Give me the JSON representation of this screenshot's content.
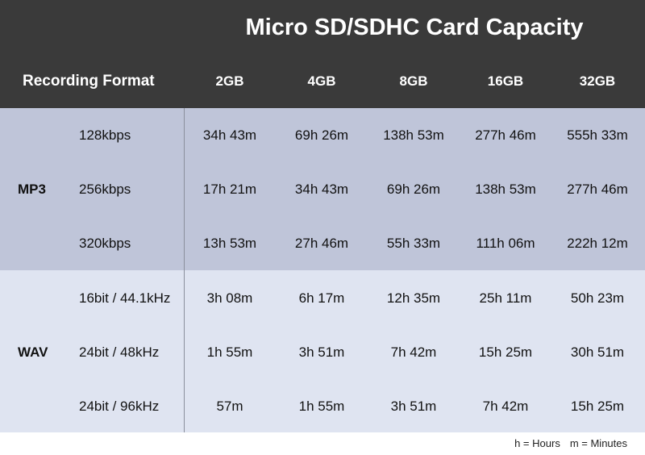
{
  "title": "Micro SD/SDHC Card Capacity",
  "row_header_label": "Recording Format",
  "columns": [
    "2GB",
    "4GB",
    "8GB",
    "16GB",
    "32GB"
  ],
  "groups": [
    {
      "name": "MP3",
      "rows": [
        {
          "rate": "128kbps",
          "values": [
            "34h 43m",
            "69h 26m",
            "138h 53m",
            "277h 46m",
            "555h 33m"
          ]
        },
        {
          "rate": "256kbps",
          "values": [
            "17h 21m",
            "34h 43m",
            "69h 26m",
            "138h 53m",
            "277h 46m"
          ]
        },
        {
          "rate": "320kbps",
          "values": [
            "13h 53m",
            "27h 46m",
            "55h 33m",
            "111h 06m",
            "222h 12m"
          ]
        }
      ]
    },
    {
      "name": "WAV",
      "rows": [
        {
          "rate": "16bit / 44.1kHz",
          "values": [
            "3h 08m",
            "6h 17m",
            "12h 35m",
            "25h 11m",
            "50h 23m"
          ]
        },
        {
          "rate": "24bit / 48kHz",
          "values": [
            "1h 55m",
            "3h 51m",
            "7h 42m",
            "15h 25m",
            "30h 51m"
          ]
        },
        {
          "rate": "24bit / 96kHz",
          "values": [
            "57m",
            "1h 55m",
            "3h 51m",
            "7h 42m",
            "15h 25m"
          ]
        }
      ]
    }
  ],
  "footnote": {
    "hours": "h = Hours",
    "minutes": "m = Minutes"
  },
  "colors": {
    "header_bg": "#3a3a3a",
    "mp3_band": "#bfc5d9",
    "wav_band": "#dfe4f1"
  }
}
